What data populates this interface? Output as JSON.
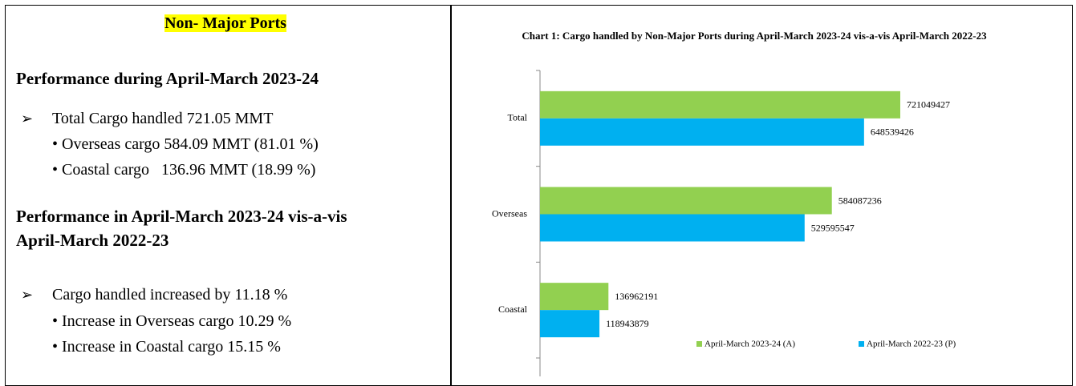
{
  "left_panel": {
    "title": "Non- Major Ports",
    "section1": {
      "heading": "Performance during April-March 2023-24",
      "main": "Total Cargo handled 721.05 MMT",
      "items": [
        "Overseas cargo 584.09 MMT (81.01 %)",
        "Coastal cargo   136.96 MMT (18.99 %)"
      ]
    },
    "section2": {
      "heading": [
        "Performance in April-March 2023-24 vis-a-vis",
        "April-March 2022-23"
      ],
      "main": "Cargo handled increased by 11.18 %",
      "items": [
        "Increase in Overseas cargo 10.29 %",
        "Increase in Coastal cargo 15.15 %"
      ]
    }
  },
  "chart_data": {
    "type": "hbar",
    "title": "Chart 1: Cargo handled by Non-Major Ports during April-March 2023-24 vis-a-vis April-March 2022-23",
    "categories": [
      "Total",
      "Overseas",
      "Coastal"
    ],
    "series": [
      {
        "name": "April-March 2023-24 (A)",
        "color": "#92d050",
        "values": [
          721049427,
          584087236,
          136962191
        ]
      },
      {
        "name": "April-March 2022-23 (P)",
        "color": "#00b0f0",
        "values": [
          648539426,
          529595547,
          118943879
        ]
      }
    ],
    "legend": "bottom"
  }
}
